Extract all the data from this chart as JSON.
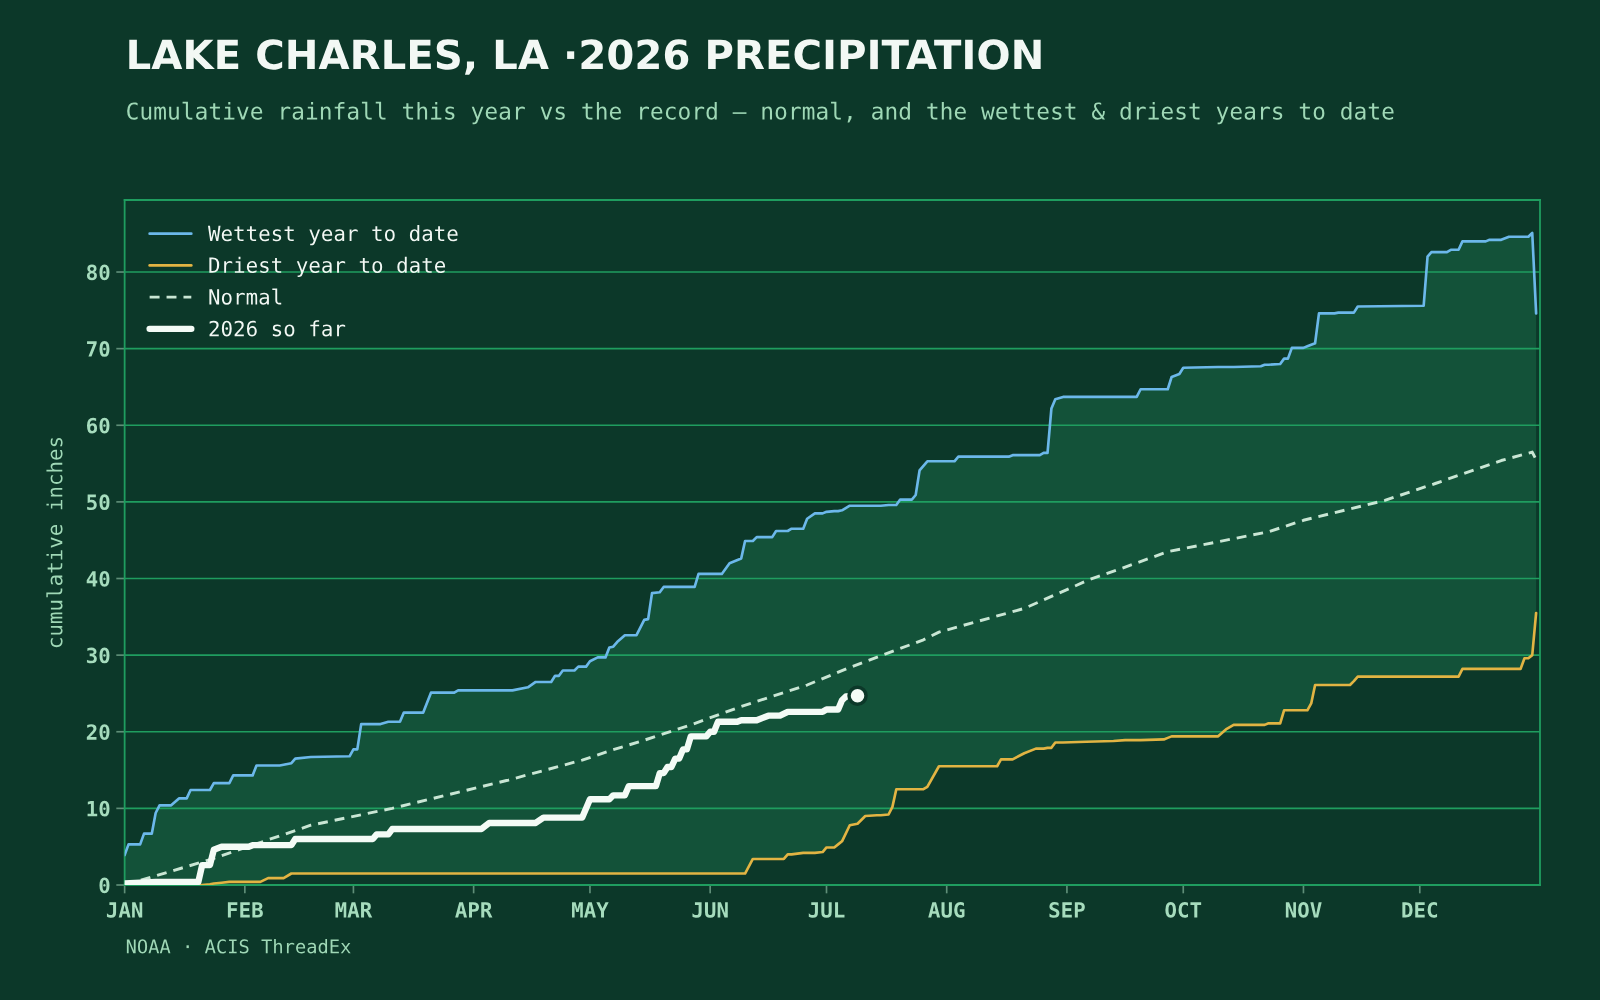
{
  "chart_data": {
    "type": "line",
    "title": "LAKE CHARLES, LA ·2026 PRECIPITATION",
    "subtitle": "Cumulative rainfall this year vs the record — normal, and the wettest & driest years to date",
    "ylabel": "cumulative inches",
    "annotations": [
      "NOAA · ACIS ThreadEx"
    ],
    "xlim": [
      "2026-01-01",
      "2027-01-01"
    ],
    "xticks": [
      {
        "value": "2026-01-01",
        "label": "JAN"
      },
      {
        "value": "2026-02-01",
        "label": "FEB"
      },
      {
        "value": "2026-03-01",
        "label": "MAR"
      },
      {
        "value": "2026-04-01",
        "label": "APR"
      },
      {
        "value": "2026-05-01",
        "label": "MAY"
      },
      {
        "value": "2026-06-01",
        "label": "JUN"
      },
      {
        "value": "2026-07-01",
        "label": "JUL"
      },
      {
        "value": "2026-08-01",
        "label": "AUG"
      },
      {
        "value": "2026-09-01",
        "label": "SEP"
      },
      {
        "value": "2026-10-01",
        "label": "OCT"
      },
      {
        "value": "2026-11-01",
        "label": "NOV"
      },
      {
        "value": "2026-12-01",
        "label": "DEC"
      }
    ],
    "ylim": [
      0,
      89.4
    ],
    "yticks": [
      0,
      10,
      20,
      30,
      40,
      50,
      60,
      70,
      80
    ],
    "grid": "y",
    "legend": "top left",
    "x": [
      "2026-01-01",
      "2026-01-02",
      "2026-01-05",
      "2026-01-06",
      "2026-01-08",
      "2026-01-09",
      "2026-01-10",
      "2026-01-13",
      "2026-01-15",
      "2026-01-17",
      "2026-01-18",
      "2026-01-21",
      "2026-01-23",
      "2026-01-24",
      "2026-01-26",
      "2026-01-28",
      "2026-01-29",
      "2026-02-03",
      "2026-02-04",
      "2026-02-05",
      "2026-02-07",
      "2026-02-10",
      "2026-02-11",
      "2026-02-13",
      "2026-02-14",
      "2026-02-18",
      "2026-02-28",
      "2026-03-01",
      "2026-03-02",
      "2026-03-03",
      "2026-03-08",
      "2026-03-10",
      "2026-03-13",
      "2026-03-14",
      "2026-03-19",
      "2026-03-21",
      "2026-03-27",
      "2026-03-28",
      "2026-04-11",
      "2026-04-15",
      "2026-04-17",
      "2026-04-21",
      "2026-04-22",
      "2026-04-23",
      "2026-04-24",
      "2026-04-27",
      "2026-04-28",
      "2026-04-30",
      "2026-05-01",
      "2026-05-03",
      "2026-05-05",
      "2026-05-06",
      "2026-05-07",
      "2026-05-08",
      "2026-05-10",
      "2026-05-13",
      "2026-05-15",
      "2026-05-16",
      "2026-05-17",
      "2026-05-19",
      "2026-05-20",
      "2026-05-28",
      "2026-05-29",
      "2026-06-04",
      "2026-06-06",
      "2026-06-09",
      "2026-06-10",
      "2026-06-12",
      "2026-06-13",
      "2026-06-17",
      "2026-06-18",
      "2026-06-20",
      "2026-06-21",
      "2026-06-22",
      "2026-06-25",
      "2026-06-26",
      "2026-06-28",
      "2026-06-30",
      "2026-07-01",
      "2026-07-03",
      "2026-07-04",
      "2026-07-05",
      "2026-07-07",
      "2026-07-09",
      "2026-07-11",
      "2026-07-14",
      "2026-07-15",
      "2026-07-17",
      "2026-07-18",
      "2026-07-19",
      "2026-07-20",
      "2026-07-23",
      "2026-07-24",
      "2026-07-25",
      "2026-07-26",
      "2026-07-27",
      "2026-07-30",
      "2026-08-03",
      "2026-08-04",
      "2026-08-14",
      "2026-08-15",
      "2026-08-17",
      "2026-08-18",
      "2026-08-21",
      "2026-08-24",
      "2026-08-25",
      "2026-08-26",
      "2026-08-27",
      "2026-08-28",
      "2026-08-29",
      "2026-08-31",
      "2026-09-06",
      "2026-09-13",
      "2026-09-16",
      "2026-09-19",
      "2026-09-20",
      "2026-09-26",
      "2026-09-27",
      "2026-09-28",
      "2026-09-30",
      "2026-10-01",
      "2026-10-10",
      "2026-10-12",
      "2026-10-14",
      "2026-10-21",
      "2026-10-22",
      "2026-10-23",
      "2026-10-26",
      "2026-10-27",
      "2026-10-28",
      "2026-10-29",
      "2026-11-01",
      "2026-11-02",
      "2026-11-03",
      "2026-11-04",
      "2026-11-05",
      "2026-11-09",
      "2026-11-10",
      "2026-11-13",
      "2026-11-14",
      "2026-11-15",
      "2026-12-02",
      "2026-12-03",
      "2026-12-04",
      "2026-12-08",
      "2026-12-09",
      "2026-12-11",
      "2026-12-12",
      "2026-12-18",
      "2026-12-19",
      "2026-12-22",
      "2026-12-24",
      "2026-12-27",
      "2026-12-28",
      "2026-12-29",
      "2026-12-30",
      "2026-12-31"
    ],
    "series": [
      {
        "name": "Wettest year to date",
        "color": "#6cb8ea",
        "values": [
          3.9,
          5.3,
          5.3,
          6.7,
          6.7,
          9.4,
          10.4,
          10.4,
          11.3,
          11.3,
          12.4,
          12.4,
          12.4,
          13.3,
          13.3,
          13.3,
          14.3,
          14.3,
          15.6,
          15.6,
          15.6,
          15.6,
          15.7,
          15.9,
          16.5,
          16.7,
          16.8,
          17.7,
          17.7,
          21.0,
          21.0,
          21.3,
          21.3,
          22.5,
          22.5,
          25.1,
          25.1,
          25.4,
          25.4,
          25.8,
          26.5,
          26.5,
          27.3,
          27.3,
          28.0,
          28.0,
          28.5,
          28.5,
          29.2,
          29.7,
          29.7,
          31.0,
          31.1,
          31.7,
          32.6,
          32.6,
          34.6,
          34.7,
          38.1,
          38.2,
          38.9,
          38.9,
          40.6,
          40.6,
          42.0,
          42.6,
          44.9,
          44.9,
          45.4,
          45.4,
          46.2,
          46.2,
          46.2,
          46.5,
          46.5,
          47.8,
          48.5,
          48.5,
          48.7,
          48.8,
          48.8,
          48.9,
          49.5,
          49.5,
          49.5,
          49.5,
          49.5,
          49.6,
          49.6,
          49.6,
          50.3,
          50.3,
          50.9,
          54.1,
          54.7,
          55.3,
          55.3,
          55.3,
          55.9,
          55.9,
          55.9,
          55.9,
          56.1,
          56.1,
          56.1,
          56.1,
          56.4,
          56.4,
          62.2,
          63.4,
          63.7,
          63.7,
          63.7,
          63.7,
          63.7,
          64.7,
          64.7,
          64.7,
          66.3,
          66.7,
          67.5,
          67.6,
          67.6,
          67.6,
          67.7,
          67.9,
          67.9,
          68.0,
          68.7,
          68.7,
          70.1,
          70.1,
          70.3,
          70.5,
          70.7,
          74.6,
          74.6,
          74.7,
          74.7,
          74.7,
          75.5,
          75.6,
          82.0,
          82.6,
          82.6,
          82.9,
          82.9,
          84.0,
          84.0,
          84.2,
          84.2,
          84.6,
          84.6,
          84.6,
          84.6,
          85.1,
          74.6
        ],
        "lower": [
          0,
          0,
          0,
          0,
          0,
          0,
          0,
          0,
          0,
          0,
          0,
          0,
          0.1,
          0.2,
          0.3,
          0.4,
          0.4,
          0.4,
          0.4,
          0.4,
          0.9,
          0.9,
          0.9,
          1.5,
          1.5,
          1.5,
          1.5,
          1.5,
          1.5,
          1.5,
          1.5,
          1.5,
          1.5,
          1.5,
          1.5,
          1.5,
          1.5,
          1.5,
          1.5,
          1.5,
          1.5,
          1.5,
          1.5,
          1.5,
          1.5,
          1.5,
          1.5,
          1.5,
          1.5,
          1.5,
          1.5,
          1.5,
          1.5,
          1.5,
          1.5,
          1.5,
          1.5,
          1.5,
          1.5,
          1.5,
          1.5,
          1.5,
          1.5,
          1.5,
          1.5,
          1.5,
          1.5,
          3.4,
          3.4,
          3.4,
          3.4,
          3.4,
          4.0,
          4.0,
          4.2,
          4.2,
          4.2,
          4.3,
          4.9,
          4.9,
          5.3,
          5.7,
          7.8,
          8.0,
          9.0,
          9.1,
          9.1,
          9.2,
          10.2,
          12.5,
          12.5,
          12.5,
          12.5,
          12.5,
          12.5,
          12.8,
          15.5,
          15.5,
          15.5,
          15.5,
          16.4,
          16.4,
          16.4,
          17.2,
          17.8,
          17.8,
          17.8,
          17.9,
          17.9,
          18.6,
          18.6,
          18.7,
          18.8,
          18.9,
          18.9,
          18.9,
          19.0,
          19.2,
          19.4,
          19.4,
          19.4,
          19.4,
          20.3,
          20.9,
          20.9,
          20.9,
          21.1,
          21.1,
          22.8,
          22.8,
          22.8,
          22.8,
          22.8,
          23.7,
          26.1,
          26.1,
          26.1,
          26.1,
          26.1,
          26.6,
          27.2,
          27.2,
          27.2,
          27.2,
          27.2,
          27.2,
          27.2,
          28.2,
          28.2,
          28.2,
          28.2,
          28.2,
          28.2,
          29.6,
          29.6,
          30.0,
          35.5
        ],
        "upper": [
          3.9,
          5.3,
          5.3,
          6.7,
          6.7,
          9.4,
          10.4,
          10.4,
          11.3,
          11.3,
          12.4,
          12.4,
          12.4,
          13.3,
          13.3,
          13.3,
          14.3,
          14.3,
          15.6,
          15.6,
          15.6,
          15.6,
          15.7,
          15.9,
          16.5,
          16.7,
          16.8,
          17.7,
          17.7,
          21.0,
          21.0,
          21.3,
          21.3,
          22.5,
          22.5,
          25.1,
          25.1,
          25.4,
          25.4,
          25.8,
          26.5,
          26.5,
          27.3,
          27.3,
          28.0,
          28.0,
          28.5,
          28.5,
          29.2,
          29.7,
          29.7,
          31.0,
          31.1,
          31.7,
          32.6,
          32.6,
          34.6,
          34.7,
          38.1,
          38.2,
          38.9,
          38.9,
          40.6,
          40.6,
          42.0,
          42.6,
          44.9,
          44.9,
          45.4,
          45.4,
          46.2,
          46.2,
          46.2,
          46.5,
          46.5,
          47.8,
          48.5,
          48.5,
          48.7,
          48.8,
          48.8,
          48.9,
          49.5,
          49.5,
          49.5,
          49.5,
          49.5,
          49.6,
          49.6,
          49.6,
          50.3,
          50.3,
          50.9,
          54.1,
          54.7,
          55.3,
          55.3,
          55.3,
          55.9,
          55.9,
          55.9,
          55.9,
          56.1,
          56.1,
          56.1,
          56.1,
          56.4,
          56.4,
          62.2,
          63.4,
          63.7,
          63.7,
          63.7,
          63.7,
          63.7,
          64.7,
          64.7,
          64.7,
          66.3,
          66.7,
          67.5,
          67.6,
          67.6,
          67.6,
          67.7,
          67.9,
          67.9,
          68.0,
          68.7,
          68.7,
          70.1,
          70.1,
          70.3,
          70.5,
          70.7,
          74.6,
          74.6,
          74.7,
          74.7,
          74.7,
          75.5,
          75.6,
          82.0,
          82.6,
          82.6,
          82.9,
          82.9,
          84.0,
          84.0,
          84.2,
          84.2,
          84.6,
          84.6,
          84.6,
          84.6,
          85.1,
          74.6
        ]
      },
      {
        "name": "Driest year to date",
        "color": "#e2b443",
        "values": [
          null,
          null,
          null,
          null,
          null,
          null,
          null,
          null,
          null,
          null,
          0,
          0,
          0.1,
          0.2,
          0.3,
          0.4,
          0.4,
          0.4,
          0.4,
          0.4,
          0.9,
          0.9,
          0.9,
          1.5,
          1.5,
          1.5,
          1.5,
          1.5,
          1.5,
          1.5,
          1.5,
          1.5,
          1.5,
          1.5,
          1.5,
          1.5,
          1.5,
          1.5,
          1.5,
          1.5,
          1.5,
          1.5,
          1.5,
          1.5,
          1.5,
          1.5,
          1.5,
          1.5,
          1.5,
          1.5,
          1.5,
          1.5,
          1.5,
          1.5,
          1.5,
          1.5,
          1.5,
          1.5,
          1.5,
          1.5,
          1.5,
          1.5,
          1.5,
          1.5,
          1.5,
          1.5,
          1.5,
          3.4,
          3.4,
          3.4,
          3.4,
          3.4,
          4.0,
          4.0,
          4.2,
          4.2,
          4.2,
          4.3,
          4.9,
          4.9,
          5.3,
          5.7,
          7.8,
          8.0,
          9.0,
          9.1,
          9.1,
          9.2,
          10.2,
          12.5,
          12.5,
          12.5,
          12.5,
          12.5,
          12.5,
          12.8,
          15.5,
          15.5,
          15.5,
          15.5,
          16.4,
          16.4,
          16.4,
          17.2,
          17.8,
          17.8,
          17.8,
          17.9,
          17.9,
          18.6,
          18.6,
          18.7,
          18.8,
          18.9,
          18.9,
          18.9,
          19.0,
          19.2,
          19.4,
          19.4,
          19.4,
          19.4,
          20.3,
          20.9,
          20.9,
          20.9,
          21.1,
          21.1,
          22.8,
          22.8,
          22.8,
          22.8,
          22.8,
          23.7,
          26.1,
          26.1,
          26.1,
          26.1,
          26.1,
          26.6,
          27.2,
          27.2,
          27.2,
          27.2,
          27.2,
          27.2,
          27.2,
          28.2,
          28.2,
          28.2,
          28.2,
          28.2,
          28.2,
          29.6,
          29.6,
          30.0,
          35.5
        ]
      },
      {
        "name": "Normal",
        "color": "#c9e6d4",
        "line_style": "dashed",
        "x": [
          "2026-01-01",
          "2026-01-23",
          "2026-02-18",
          "2026-03-11",
          "2026-04-10",
          "2026-04-29",
          "2026-05-06",
          "2026-05-15",
          "2026-05-27",
          "2026-06-09",
          "2026-06-26",
          "2026-07-07",
          "2026-07-26",
          "2026-07-30",
          "2026-08-21",
          "2026-09-07",
          "2026-09-15",
          "2026-09-27",
          "2026-10-23",
          "2026-11-01",
          "2026-11-22",
          "2026-12-05",
          "2026-12-22",
          "2026-12-30",
          "2026-12-31"
        ],
        "values": [
          0,
          3.3,
          7.8,
          10.0,
          13.7,
          16.3,
          17.5,
          18.9,
          20.9,
          23.3,
          26.1,
          28.4,
          32.0,
          33.0,
          36.1,
          39.9,
          41.3,
          43.5,
          46.1,
          47.6,
          50.2,
          52.4,
          55.4,
          56.5,
          55.5
        ]
      },
      {
        "name": "2026 so far",
        "color": "#f4fbf6",
        "x": [
          "2026-01-01",
          "2026-01-09",
          "2026-01-20",
          "2026-01-21",
          "2026-01-23",
          "2026-01-24",
          "2026-01-26",
          "2026-02-02",
          "2026-02-03",
          "2026-02-13",
          "2026-02-14",
          "2026-03-06",
          "2026-03-07",
          "2026-03-10",
          "2026-03-11",
          "2026-04-03",
          "2026-04-05",
          "2026-04-17",
          "2026-04-19",
          "2026-04-29",
          "2026-05-01",
          "2026-05-06",
          "2026-05-07",
          "2026-05-10",
          "2026-05-11",
          "2026-05-18",
          "2026-05-19",
          "2026-05-20",
          "2026-05-21",
          "2026-05-22",
          "2026-05-23",
          "2026-05-24",
          "2026-05-25",
          "2026-05-26",
          "2026-05-27",
          "2026-05-31",
          "2026-06-01",
          "2026-06-02",
          "2026-06-03",
          "2026-06-08",
          "2026-06-09",
          "2026-06-13",
          "2026-06-16",
          "2026-06-19",
          "2026-06-21",
          "2026-06-30",
          "2026-07-01",
          "2026-07-04",
          "2026-07-05",
          "2026-07-06",
          "2026-07-09"
        ],
        "values": [
          0.2,
          0.4,
          0.4,
          2.6,
          2.6,
          4.6,
          5.0,
          5.0,
          5.2,
          5.2,
          6.0,
          6.0,
          6.6,
          6.6,
          7.3,
          7.3,
          8.1,
          8.1,
          8.8,
          8.8,
          11.2,
          11.2,
          11.7,
          11.7,
          12.9,
          12.9,
          14.6,
          14.6,
          15.4,
          15.4,
          16.5,
          16.5,
          17.7,
          17.7,
          19.4,
          19.4,
          20.0,
          20.0,
          21.3,
          21.3,
          21.5,
          21.5,
          22.1,
          22.1,
          22.6,
          22.6,
          22.9,
          22.9,
          24.1,
          24.6,
          24.7
        ]
      },
      {
        "type": "scatter",
        "color": "#f4fbf6",
        "marker": "circle",
        "x": [
          "2026-07-09"
        ],
        "values": [
          24.7
        ]
      }
    ]
  }
}
